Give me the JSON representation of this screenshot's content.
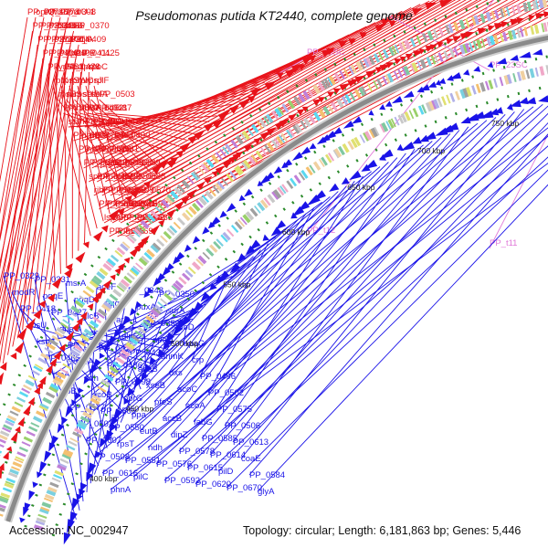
{
  "title": "Pseudomonas putida KT2440, complete genome",
  "footer": {
    "accession": "Accession: NC_002947",
    "topology": "Topology: circular; Length: 6,181,863 bp; Genes: 5,446"
  },
  "colors": {
    "forward": "#e8131a",
    "reverse": "#1a13e8",
    "rna": "#e078d8",
    "backbone": "#8a8a8a",
    "tick": "#2a8a2a"
  },
  "scale_ticks": [
    "400 kbp",
    "450 kbp",
    "500 kbp",
    "550 kbp",
    "600 kbp",
    "650 kbp",
    "700 kbp",
    "750 kbp",
    "800 kbp",
    "850 kbp"
  ],
  "forward_genes": [
    "PP_0272",
    "oprQ",
    "PP_0278",
    "hisB",
    "PP_0308",
    "purU-1",
    "PP_0333",
    "PP_0345",
    "PP_0355",
    "bioF",
    "bioB",
    "PP_0370",
    "PP_0372",
    "PP_0373",
    "PP_0374",
    "folK-1",
    "PP_0409",
    "djlA",
    "PP_0406",
    "PP_0419",
    "PP_0405",
    "rpe",
    "PP_0411",
    "PP_0425",
    "PP_0433",
    "tyrS",
    "PP_0438",
    "tuf",
    "rpsN",
    "rpoC",
    "rplK",
    "rpsS",
    "rplW",
    "rplC",
    "rpsJ",
    "rplF",
    "rpsE",
    "rplS",
    "rpsD",
    "selB",
    "selA",
    "PP_0503",
    "PP_0501",
    "ribA",
    "ribBA-1",
    "PP_0492",
    "PP_0487",
    "ribE-1",
    "ssb",
    "PP_0500",
    "PP_0491",
    "PP_0521",
    "katA",
    "PP_0488",
    "PP_0509",
    "ribH",
    "ribD",
    "PP_0484",
    "pppA",
    "PP_0490",
    "PP_0497",
    "ntdR",
    "PP_0526",
    "PP_0531",
    "ubiD",
    "mpl",
    "PP_0535",
    "PP_0549",
    "pbpC",
    "PP_0546",
    "PP_0568",
    "PP_0589",
    "speA",
    "PP_0582",
    "PP_0566",
    "ileS",
    "PP_0565",
    "PP_0588",
    "ribF",
    "PP_0564",
    "PP_0583",
    "PP_0599",
    "acoR",
    "PP_0570",
    "PP_0596",
    "PP_0612",
    "PP_0573",
    "mmsA-1",
    "PP_0590",
    "fkpB",
    "lspA",
    "clpB",
    "PP_0624",
    "PP_0642",
    "PP_0635",
    "metB",
    "PP_0658",
    "PP_0669",
    "rplU"
  ],
  "rna_genes": [
    "PP_16SC",
    "PP_23SC",
    "PP_t12",
    "PP_t11"
  ],
  "reverse_genes": [
    "PP_0329",
    "PP_0331",
    "msrA",
    "aceF",
    "PP_0348",
    "PP_0350",
    "modR",
    "pqqE",
    "pqqD",
    "pqqC",
    "pdxA",
    "surA",
    "PP_0418",
    "PP_0427",
    "glcB",
    "rarD-1",
    "PP_0359",
    "rpoD",
    "rpsU",
    "dnaG",
    "cca",
    "glpE",
    "apaH",
    "apaG",
    "ksgA",
    "PP_0426",
    "PP_0428",
    "PP_0430",
    "anmK",
    "crp",
    "PP_0435",
    "uvrA",
    "PP_0486",
    "ansB",
    "dxs",
    "PP_0496",
    "ispA",
    "adh",
    "PP_0498",
    "xseB",
    "acoC",
    "PP_0502",
    "ribB",
    "acoB",
    "oprG",
    "pfeS",
    "acoA",
    "PP_0575",
    "PP_0577",
    "PP_0505",
    "ppa",
    "accB",
    "fabG",
    "PP_0506",
    "PP_0507",
    "PP_0550",
    "eutB",
    "dipZ",
    "PP_0585",
    "PP_0613",
    "PP_0607",
    "rpsT",
    "ndh",
    "PP_0578",
    "PP_0614",
    "coaE",
    "PP_0508",
    "PP_0551",
    "PP_0576",
    "PP_0615",
    "pilD",
    "PP_0584",
    "PP_0616",
    "pilC",
    "PP_0592",
    "PP_0620",
    "PP_0670",
    "glyA",
    "phnA"
  ]
}
